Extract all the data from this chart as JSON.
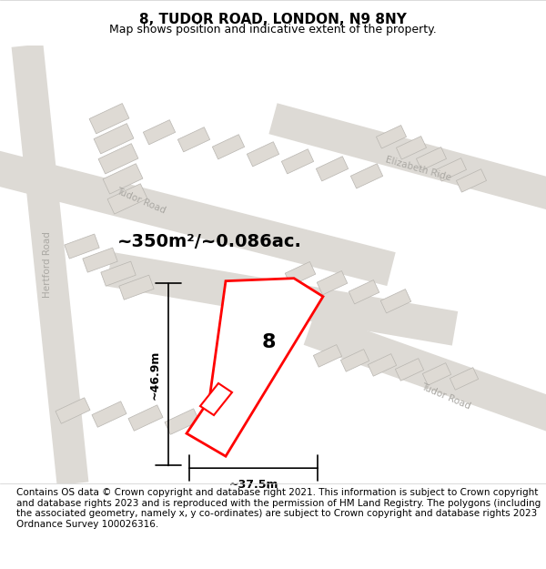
{
  "title": "8, TUDOR ROAD, LONDON, N9 8NY",
  "subtitle": "Map shows position and indicative extent of the property.",
  "area_text": "~350m²/~0.086ac.",
  "dim_width": "~37.5m",
  "dim_height": "~46.9m",
  "property_number": "8",
  "footer": "Contains OS data © Crown copyright and database right 2021. This information is subject to Crown copyright and database rights 2023 and is reproduced with the permission of HM Land Registry. The polygons (including the associated geometry, namely x, y co-ordinates) are subject to Crown copyright and database rights 2023 Ordnance Survey 100026316.",
  "bg_color": "#f0eeeb",
  "map_bg": "#e8e6e3",
  "road_color": "#c8c8c8",
  "building_fill": "#d8d5d0",
  "building_stroke": "#b0aeab",
  "light_road_fill": "#ffffff",
  "red_color": "#ff0000",
  "title_fontsize": 11,
  "subtitle_fontsize": 9,
  "area_fontsize": 14,
  "footer_fontsize": 7.5
}
